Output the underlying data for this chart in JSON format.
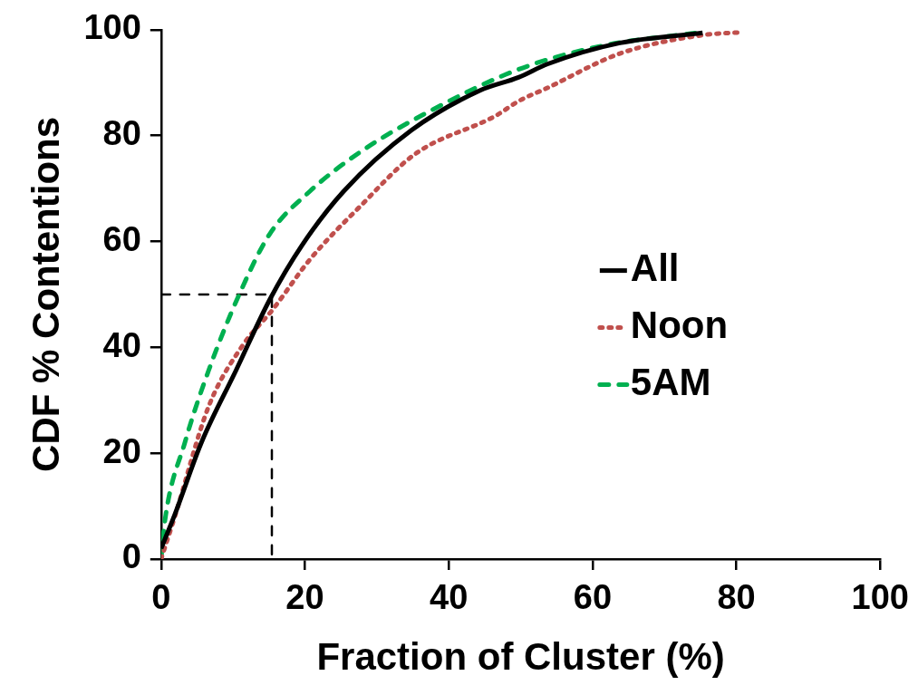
{
  "chart_data": {
    "type": "line",
    "xlabel": "Fraction of Cluster (%)",
    "ylabel": "CDF % Contentions",
    "xlim": [
      0,
      100
    ],
    "xticks": [
      0,
      20,
      40,
      60,
      80,
      100
    ],
    "ylim": [
      0,
      100
    ],
    "yticks": [
      0,
      20,
      40,
      60,
      80,
      100
    ],
    "grid": false,
    "legend": "right",
    "marker": "none",
    "series": [
      {
        "name": "All",
        "color": "#000000",
        "line_style": "solid",
        "x": [
          0,
          1.9,
          5.6,
          10.4,
          15.1,
          19.6,
          25.4,
          34.8,
          44.3,
          49.7,
          53.7,
          63.8,
          75.3
        ],
        "values": [
          2,
          8.4,
          22,
          35.6,
          49,
          59.3,
          69.5,
          81,
          88.5,
          91,
          93.5,
          97.5,
          99.4
        ]
      },
      {
        "name": "Noon",
        "color": "#c0504d",
        "line_style": "dotted",
        "x": [
          0,
          1.9,
          6.6,
          11.3,
          15.5,
          20.7,
          27.8,
          35.3,
          46.6,
          49.7,
          53.7,
          63.8,
          75.4,
          80.5
        ],
        "values": [
          0,
          8,
          28.8,
          40.3,
          47.1,
          56.6,
          66.8,
          76.5,
          83.8,
          86.5,
          89,
          95.5,
          99,
          99.5
        ]
      },
      {
        "name": "5AM",
        "color": "#00b050",
        "line_style": "dashed",
        "x": [
          0,
          0.5,
          3.3,
          6.6,
          10.8,
          15.1,
          20.7,
          27.8,
          37.2,
          49.7,
          61.5,
          74.4
        ],
        "values": [
          0,
          7,
          22,
          35.6,
          49.8,
          61.4,
          69.5,
          77,
          84.5,
          92.5,
          97,
          99.4
        ]
      },
      {
        "color": "#000000",
        "line_style": "dashed",
        "x": [
          0,
          15.4,
          15.4
        ],
        "values": [
          50,
          50,
          0
        ]
      }
    ]
  }
}
